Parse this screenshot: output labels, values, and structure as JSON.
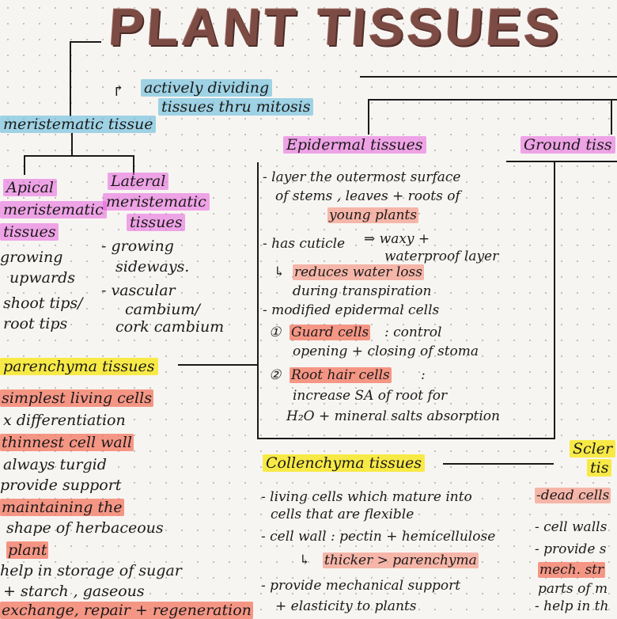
{
  "title": "PLANT TISSUES",
  "header_note": {
    "line1": "actively dividing",
    "line2": "tissues thru mitosis"
  },
  "meristematic": {
    "heading": "meristematic tissue",
    "apical": {
      "l1": "Apical",
      "l2": "meristematic",
      "l3": "tissues",
      "b1": "growing",
      "b2": "upwards",
      "b3": "shoot tips/",
      "b4": "root tips"
    },
    "lateral": {
      "l1": "Lateral",
      "l2": "meristematic",
      "l3": "tissues",
      "b1": "- growing",
      "b2": "sideways.",
      "b3": "- vascular",
      "b4": "cambium/",
      "b5": "cork cambium"
    }
  },
  "epidermal": {
    "heading": "Epidermal tissues",
    "l1": "- layer the outermost surface",
    "l2": "of stems , leaves + roots of",
    "l3": "young plants",
    "l4": "- has cuticle",
    "l4b": "⇒ waxy +",
    "l5": "waterproof layer",
    "l6": "reduces water loss",
    "l7": "during transpiration",
    "l8": "- modified epidermal cells",
    "l9a": "Guard cells",
    "l9b": ": control",
    "l10": "opening + closing of stoma",
    "l11a": "Root hair cells",
    "l11b": ":",
    "l12": "increase SA of root for",
    "l13": "H₂O + mineral salts absorption"
  },
  "ground": {
    "heading": "Ground tiss"
  },
  "parenchyma": {
    "heading": "parenchyma tissues",
    "l1": "simplest living cells",
    "l2": "x differentiation",
    "l3": "thinnest cell wall",
    "l4": "always turgid",
    "l5": "provide support",
    "l6": "maintaining the",
    "l7": "shape of herbaceous",
    "l8": "plant",
    "l9": "help in storage of sugar",
    "l10": "+ starch , gaseous",
    "l11": "exchange, repair + regeneration"
  },
  "collenchyma": {
    "heading": "Collenchyma tissues",
    "l1": "- living cells which mature into",
    "l2": "cells that are flexible",
    "l3": "- cell wall : pectin + hemicellulose",
    "l4": "thicker > parenchyma",
    "l5": "- provide mechanical support",
    "l6": "+ elasticity to plants"
  },
  "sclerenchyma": {
    "heading1": "Scler",
    "heading2": "tis",
    "l1": "-dead cells",
    "l2": "- cell walls",
    "l3": "- provide s",
    "l4": "mech. str",
    "l5": "parts of m",
    "l6": "- help in th"
  },
  "colors": {
    "title": "#7c4b44",
    "pink": "#e85fdc",
    "blue": "#6ebedc",
    "yellow": "#f8e828",
    "red": "#f47660"
  }
}
